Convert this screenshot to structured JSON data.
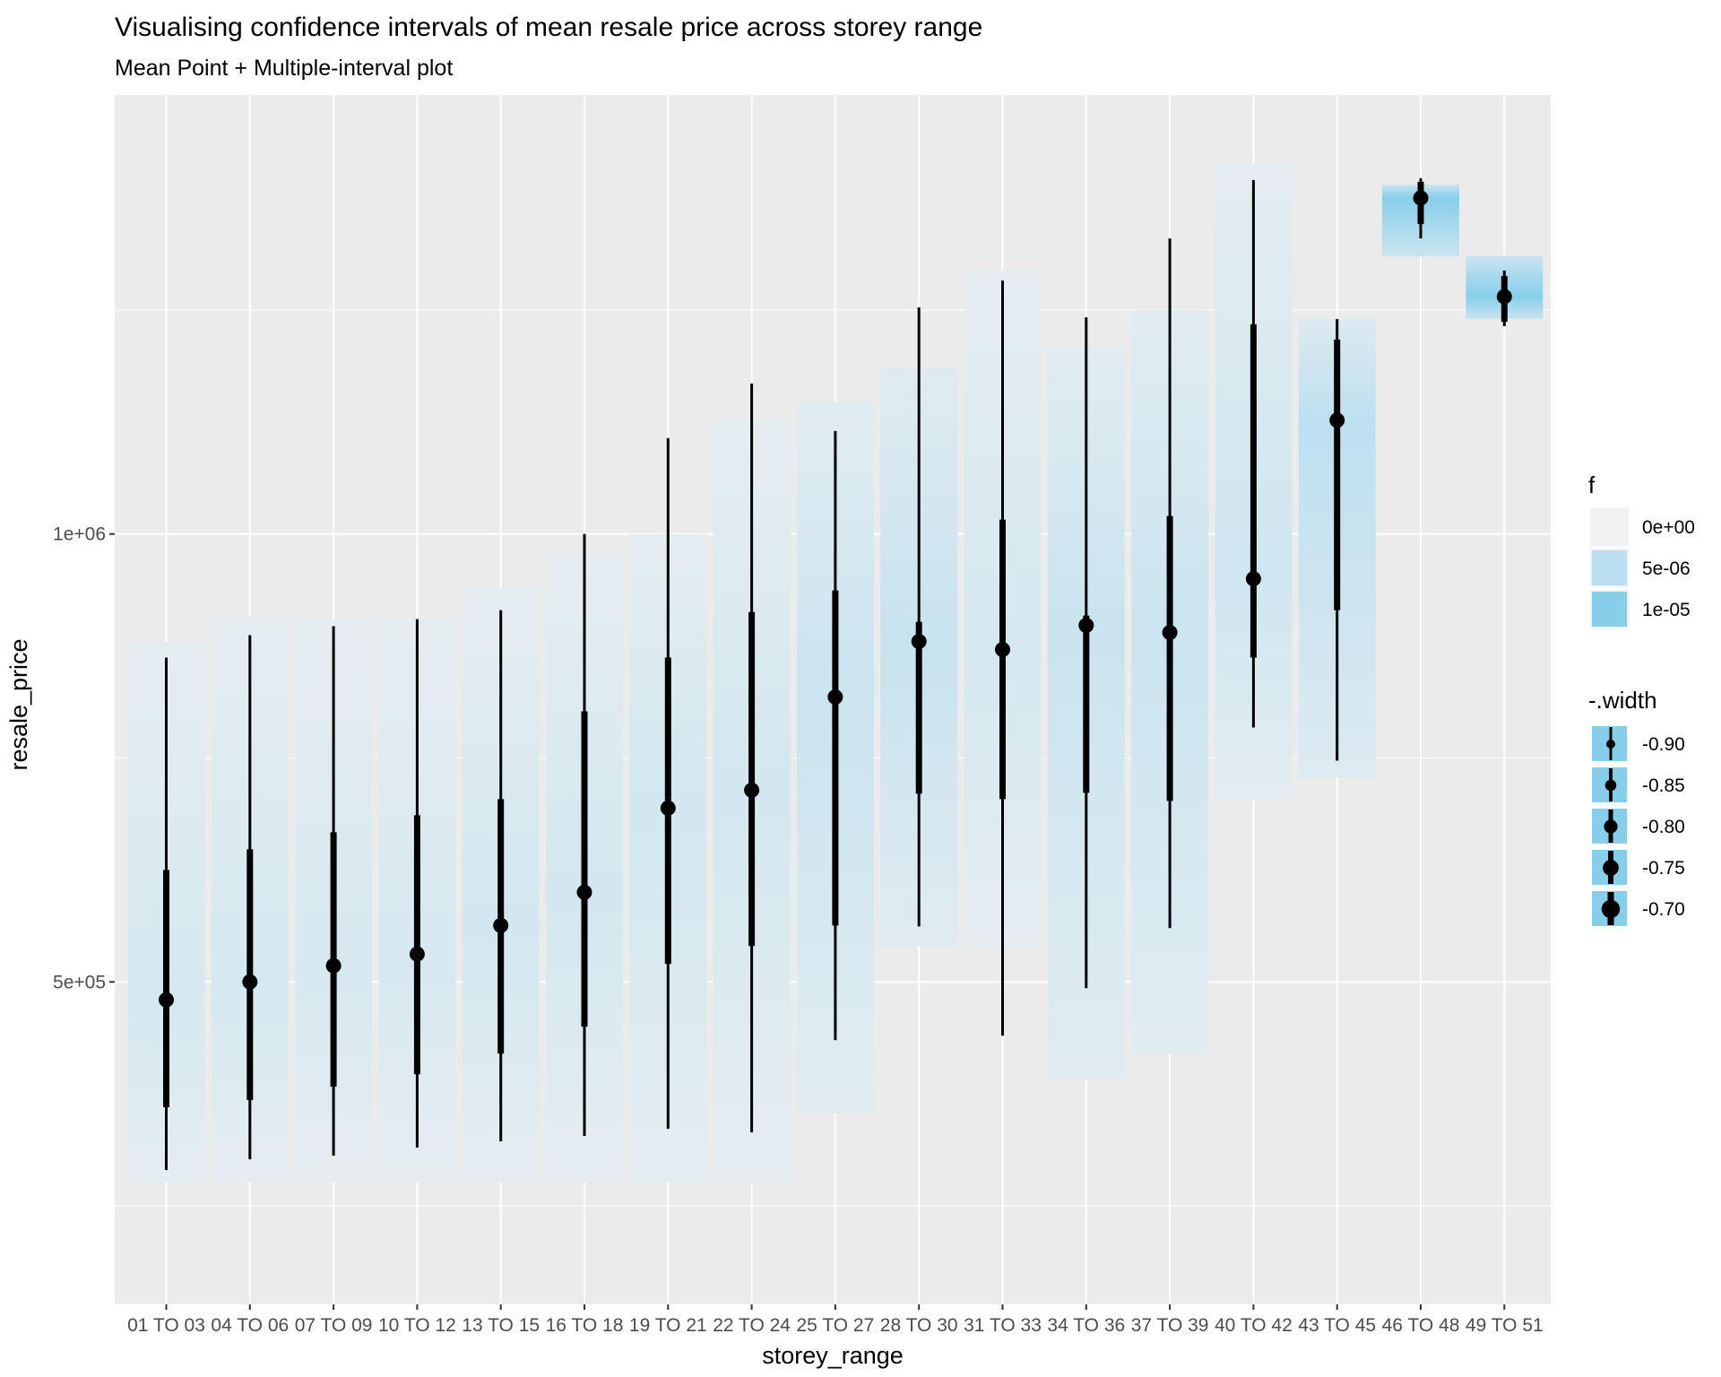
{
  "chart_data": {
    "type": "scatter",
    "title": "Visualising confidence intervals of mean resale price across storey range",
    "subtitle": "Mean Point + Multiple-interval plot",
    "xlabel": "storey_range",
    "ylabel": "resale_price",
    "y_ticks": [
      {
        "value": 500000,
        "label": "5e+05"
      },
      {
        "value": 1000000,
        "label": "1e+06"
      }
    ],
    "ylim": [
      140000,
      1490000
    ],
    "grid": true,
    "legend_position": "right",
    "colors": {
      "panel": "#ebebeb",
      "grid": "#ffffff",
      "density_low": "#eef0f2",
      "density_high": "#87ceeb",
      "point": "#000000"
    },
    "categories": [
      "01 TO 03",
      "04 TO 06",
      "07 TO 09",
      "10 TO 12",
      "13 TO 15",
      "16 TO 18",
      "19 TO 21",
      "22 TO 24",
      "25 TO 27",
      "28 TO 30",
      "31 TO 33",
      "34 TO 36",
      "37 TO 39",
      "40 TO 42",
      "43 TO 45",
      "46 TO 48",
      "49 TO 51"
    ],
    "mean": [
      480000,
      500000,
      518000,
      531000,
      563000,
      600000,
      694000,
      714000,
      818000,
      880000,
      871000,
      898000,
      890000,
      950000,
      1127000,
      1375000,
      1265000
    ],
    "interval_thick": [
      [
        360000,
        625000
      ],
      [
        368000,
        648000
      ],
      [
        383000,
        667000
      ],
      [
        397000,
        686000
      ],
      [
        420000,
        704000
      ],
      [
        450000,
        802000
      ],
      [
        520000,
        862000
      ],
      [
        540000,
        913000
      ],
      [
        563000,
        937000
      ],
      [
        710000,
        902000
      ],
      [
        704000,
        1016000
      ],
      [
        711000,
        909000
      ],
      [
        702000,
        1020000
      ],
      [
        862000,
        1234000
      ],
      [
        915000,
        1217000
      ],
      [
        1346000,
        1393000
      ],
      [
        1237000,
        1288000
      ]
    ],
    "interval_thin": [
      [
        290000,
        862000
      ],
      [
        302000,
        887000
      ],
      [
        306000,
        897000
      ],
      [
        315000,
        905000
      ],
      [
        322000,
        915000
      ],
      [
        328000,
        1000000
      ],
      [
        336000,
        1107000
      ],
      [
        332000,
        1168000
      ],
      [
        435000,
        1115000
      ],
      [
        562000,
        1253000
      ],
      [
        440000,
        1283000
      ],
      [
        493000,
        1242000
      ],
      [
        560000,
        1330000
      ],
      [
        784000,
        1395000
      ],
      [
        747000,
        1240000
      ],
      [
        1330000,
        1397000
      ],
      [
        1232000,
        1294000
      ]
    ],
    "density_band": [
      [
        276000,
        880000
      ],
      [
        276000,
        908000
      ],
      [
        276000,
        905000
      ],
      [
        276000,
        905000
      ],
      [
        276000,
        940000
      ],
      [
        276000,
        980000
      ],
      [
        276000,
        1000000
      ],
      [
        276000,
        1128000
      ],
      [
        353000,
        1147000
      ],
      [
        540000,
        1185000
      ],
      [
        540000,
        1295000
      ],
      [
        390000,
        1208000
      ],
      [
        420000,
        1250000
      ],
      [
        704000,
        1413000
      ],
      [
        728000,
        1240000
      ],
      [
        1310000,
        1390000
      ],
      [
        1240000,
        1310000
      ]
    ],
    "density_peak": [
      2.5e-06,
      2.5e-06,
      2.3e-06,
      2.3e-06,
      2.6e-06,
      2.6e-06,
      2.7e-06,
      2.6e-06,
      3.5e-06,
      3.8e-06,
      2.5e-06,
      3.6e-06,
      3.5e-06,
      3e-06,
      4.8e-06,
      1e-05,
      1e-05
    ],
    "legends": [
      {
        "title": "f",
        "labels": [
          "0e+00",
          "5e-06",
          "1e-05"
        ],
        "values": [
          0,
          5e-06,
          1e-05
        ]
      },
      {
        "title": "-.width",
        "labels": [
          "-0.90",
          "-0.85",
          "-0.80",
          "-0.75",
          "-0.70"
        ]
      }
    ]
  }
}
